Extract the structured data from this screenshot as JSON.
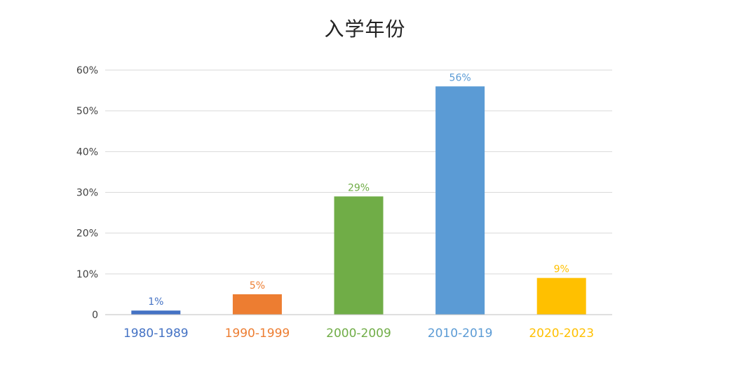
{
  "chart_data": {
    "type": "bar",
    "title": "入学年份",
    "xlabel": "",
    "ylabel": "",
    "categories": [
      "1980-1989",
      "1990-1999",
      "2000-2009",
      "2010-2019",
      "2020-2023"
    ],
    "values": [
      1,
      5,
      29,
      56,
      9
    ],
    "data_labels": [
      "1%",
      "5%",
      "29%",
      "56%",
      "9%"
    ],
    "colors": [
      "#4472C4",
      "#ED7D31",
      "#70AD47",
      "#5B9BD5",
      "#FFC000"
    ],
    "ylim": [
      0,
      60
    ],
    "yticks": [
      {
        "value": 0,
        "label": "0"
      },
      {
        "value": 10,
        "label": "10%"
      },
      {
        "value": 20,
        "label": "20%"
      },
      {
        "value": 30,
        "label": "30%"
      },
      {
        "value": 40,
        "label": "40%"
      },
      {
        "value": 50,
        "label": "50%"
      },
      {
        "value": 60,
        "label": "60%"
      }
    ],
    "grid": true,
    "legend": "none"
  }
}
